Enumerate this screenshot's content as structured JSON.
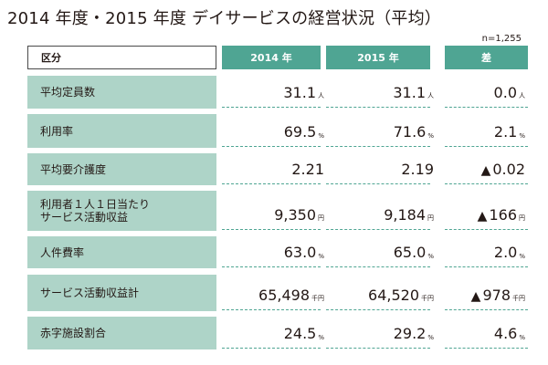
{
  "title": "2014 年度・2015 年度 デイサービスの経営状況（平均）",
  "note": "n=1,255",
  "header": {
    "label": "区分",
    "col1": "2014 年",
    "col2": "2015 年",
    "col3": "差"
  },
  "rows": [
    {
      "label": "平均定員数",
      "v1": "31.1",
      "u1": "人",
      "v2": "31.1",
      "u2": "人",
      "v3": "0.0",
      "u3": "人"
    },
    {
      "label": "利用率",
      "v1": "69.5",
      "u1": "%",
      "v2": "71.6",
      "u2": "%",
      "v3": "2.1",
      "u3": "%"
    },
    {
      "label": "平均要介護度",
      "v1": "2.21",
      "u1": "",
      "v2": "2.19",
      "u2": "",
      "t3": "▲",
      "v3": "0.02",
      "u3": ""
    },
    {
      "label": "利用者１人１日当たり",
      "label2": "サービス活動収益",
      "v1": "9,350",
      "u1": "円",
      "v2": "9,184",
      "u2": "円",
      "t3": "▲",
      "v3": "166",
      "u3": "円"
    },
    {
      "label": "人件費率",
      "v1": "63.0",
      "u1": "%",
      "v2": "65.0",
      "u2": "%",
      "v3": "2.0",
      "u3": "%"
    },
    {
      "label": "サービス活動収益計",
      "v1": "65,498",
      "u1": "千円",
      "v2": "64,520",
      "u2": "千円",
      "t3": "▲",
      "v3": "978",
      "u3": "千円"
    },
    {
      "label": "赤字施設割合",
      "v1": "24.5",
      "u1": "%",
      "v2": "29.2",
      "u2": "%",
      "v3": "4.6",
      "u3": "%"
    }
  ]
}
